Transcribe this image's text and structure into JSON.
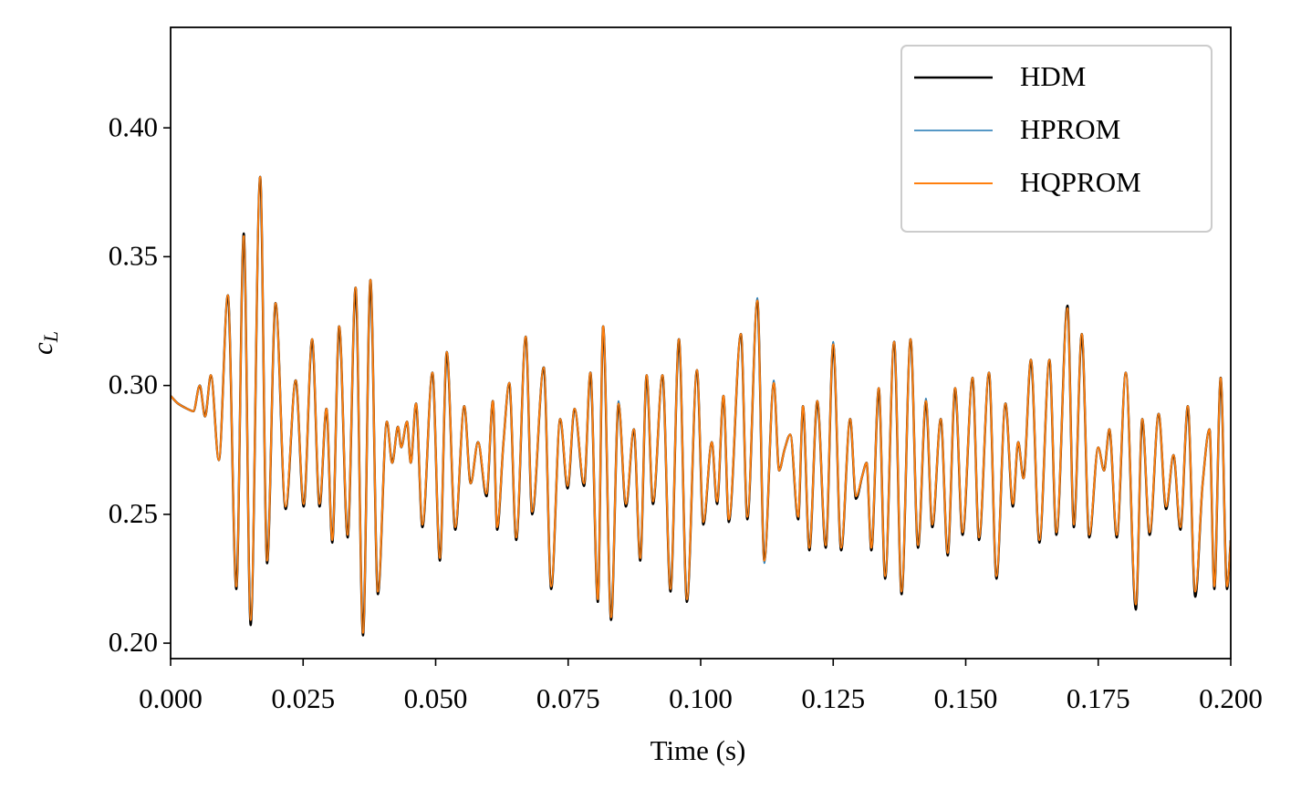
{
  "chart_data": {
    "type": "line",
    "x_label": "Time (s)",
    "y_label": "c",
    "y_label_subscript": "L",
    "x": [
      0,
      0.0014,
      0.0031,
      0.0043,
      0.0055,
      0.0065,
      0.0076,
      0.0091,
      0.0108,
      0.0124,
      0.0138,
      0.0151,
      0.0169,
      0.0182,
      0.0198,
      0.0217,
      0.0236,
      0.0251,
      0.0267,
      0.0281,
      0.0294,
      0.0305,
      0.0318,
      0.0334,
      0.0349,
      0.0363,
      0.0377,
      0.0391,
      0.0408,
      0.0418,
      0.0429,
      0.0435,
      0.0446,
      0.0453,
      0.0463,
      0.0475,
      0.0494,
      0.0508,
      0.0521,
      0.0537,
      0.0554,
      0.0566,
      0.058,
      0.0596,
      0.0608,
      0.0616,
      0.0628,
      0.0639,
      0.0652,
      0.067,
      0.0682,
      0.0704,
      0.0718,
      0.0735,
      0.0749,
      0.0762,
      0.078,
      0.0792,
      0.0806,
      0.0816,
      0.0831,
      0.0845,
      0.0859,
      0.0874,
      0.0886,
      0.0898,
      0.091,
      0.0928,
      0.0943,
      0.0959,
      0.0974,
      0.0993,
      0.1005,
      0.1021,
      0.1031,
      0.1043,
      0.1053,
      0.1076,
      0.1088,
      0.1107,
      0.112,
      0.1138,
      0.1148,
      0.1158,
      0.1169,
      0.1184,
      0.1193,
      0.1205,
      0.122,
      0.1236,
      0.125,
      0.1265,
      0.1282,
      0.1293,
      0.1305,
      0.1313,
      0.1322,
      0.1336,
      0.1348,
      0.1365,
      0.1379,
      0.1396,
      0.141,
      0.1425,
      0.1437,
      0.1453,
      0.1466,
      0.148,
      0.1494,
      0.1513,
      0.1525,
      0.1544,
      0.1558,
      0.1575,
      0.1589,
      0.1599,
      0.1609,
      0.1623,
      0.1639,
      0.1658,
      0.1671,
      0.1692,
      0.1704,
      0.1719,
      0.1733,
      0.175,
      0.1761,
      0.1771,
      0.1785,
      0.1802,
      0.1821,
      0.1833,
      0.1847,
      0.1864,
      0.1878,
      0.1892,
      0.1905,
      0.1919,
      0.1933,
      0.1947,
      0.196,
      0.1969,
      0.1981,
      0.1993,
      0.2
    ],
    "series": [
      {
        "name": "HDM",
        "color": "#000000",
        "width": 2.4,
        "values": [
          0.296,
          0.293,
          0.291,
          0.29,
          0.3,
          0.288,
          0.304,
          0.271,
          0.335,
          0.221,
          0.359,
          0.207,
          0.381,
          0.231,
          0.332,
          0.252,
          0.302,
          0.253,
          0.318,
          0.253,
          0.291,
          0.239,
          0.323,
          0.241,
          0.338,
          0.203,
          0.341,
          0.219,
          0.286,
          0.27,
          0.284,
          0.276,
          0.286,
          0.27,
          0.293,
          0.245,
          0.305,
          0.232,
          0.313,
          0.244,
          0.292,
          0.262,
          0.278,
          0.257,
          0.294,
          0.244,
          0.278,
          0.301,
          0.24,
          0.319,
          0.25,
          0.307,
          0.221,
          0.287,
          0.26,
          0.291,
          0.261,
          0.305,
          0.216,
          0.323,
          0.209,
          0.293,
          0.253,
          0.283,
          0.232,
          0.304,
          0.254,
          0.304,
          0.22,
          0.318,
          0.216,
          0.306,
          0.246,
          0.278,
          0.254,
          0.296,
          0.247,
          0.32,
          0.248,
          0.333,
          0.232,
          0.301,
          0.267,
          0.275,
          0.281,
          0.248,
          0.292,
          0.236,
          0.294,
          0.237,
          0.316,
          0.236,
          0.287,
          0.256,
          0.265,
          0.27,
          0.236,
          0.299,
          0.225,
          0.317,
          0.219,
          0.318,
          0.237,
          0.294,
          0.245,
          0.287,
          0.234,
          0.299,
          0.242,
          0.303,
          0.24,
          0.305,
          0.225,
          0.293,
          0.253,
          0.278,
          0.264,
          0.31,
          0.239,
          0.31,
          0.242,
          0.331,
          0.245,
          0.32,
          0.241,
          0.276,
          0.267,
          0.283,
          0.241,
          0.305,
          0.213,
          0.287,
          0.242,
          0.289,
          0.252,
          0.273,
          0.244,
          0.292,
          0.218,
          0.262,
          0.283,
          0.221,
          0.303,
          0.221,
          0.24
        ]
      },
      {
        "name": "HPROM",
        "color": "#1f77b4",
        "width": 1.6,
        "values": [
          0.296,
          0.293,
          0.291,
          0.29,
          0.3,
          0.288,
          0.304,
          0.271,
          0.335,
          0.223,
          0.357,
          0.21,
          0.381,
          0.232,
          0.332,
          0.253,
          0.302,
          0.254,
          0.318,
          0.254,
          0.291,
          0.24,
          0.323,
          0.242,
          0.338,
          0.205,
          0.341,
          0.22,
          0.286,
          0.27,
          0.284,
          0.276,
          0.286,
          0.27,
          0.293,
          0.246,
          0.305,
          0.233,
          0.313,
          0.245,
          0.292,
          0.262,
          0.278,
          0.258,
          0.294,
          0.245,
          0.278,
          0.301,
          0.241,
          0.319,
          0.251,
          0.307,
          0.222,
          0.287,
          0.261,
          0.291,
          0.262,
          0.305,
          0.217,
          0.323,
          0.211,
          0.294,
          0.254,
          0.283,
          0.233,
          0.304,
          0.255,
          0.304,
          0.221,
          0.318,
          0.217,
          0.306,
          0.247,
          0.278,
          0.255,
          0.296,
          0.248,
          0.32,
          0.249,
          0.334,
          0.231,
          0.302,
          0.267,
          0.275,
          0.281,
          0.249,
          0.292,
          0.237,
          0.294,
          0.238,
          0.317,
          0.237,
          0.287,
          0.257,
          0.265,
          0.27,
          0.237,
          0.299,
          0.226,
          0.317,
          0.22,
          0.318,
          0.238,
          0.295,
          0.246,
          0.287,
          0.235,
          0.299,
          0.243,
          0.303,
          0.241,
          0.305,
          0.226,
          0.293,
          0.254,
          0.278,
          0.264,
          0.31,
          0.24,
          0.31,
          0.243,
          0.33,
          0.246,
          0.32,
          0.242,
          0.276,
          0.267,
          0.283,
          0.242,
          0.305,
          0.215,
          0.287,
          0.243,
          0.289,
          0.253,
          0.273,
          0.245,
          0.292,
          0.22,
          0.262,
          0.283,
          0.222,
          0.303,
          0.222,
          0.24
        ]
      },
      {
        "name": "HQPROM",
        "color": "#ff7f0e",
        "width": 2.0,
        "values": [
          0.296,
          0.293,
          0.291,
          0.29,
          0.3,
          0.288,
          0.304,
          0.271,
          0.335,
          0.222,
          0.358,
          0.209,
          0.381,
          0.232,
          0.332,
          0.253,
          0.302,
          0.254,
          0.318,
          0.254,
          0.291,
          0.24,
          0.323,
          0.242,
          0.338,
          0.204,
          0.341,
          0.22,
          0.286,
          0.27,
          0.284,
          0.276,
          0.286,
          0.27,
          0.293,
          0.246,
          0.305,
          0.233,
          0.313,
          0.245,
          0.292,
          0.262,
          0.278,
          0.258,
          0.294,
          0.245,
          0.278,
          0.301,
          0.241,
          0.319,
          0.251,
          0.307,
          0.222,
          0.287,
          0.261,
          0.291,
          0.262,
          0.305,
          0.217,
          0.323,
          0.21,
          0.293,
          0.254,
          0.283,
          0.233,
          0.304,
          0.255,
          0.304,
          0.221,
          0.318,
          0.217,
          0.306,
          0.247,
          0.278,
          0.255,
          0.296,
          0.248,
          0.32,
          0.249,
          0.333,
          0.232,
          0.301,
          0.267,
          0.275,
          0.281,
          0.249,
          0.292,
          0.237,
          0.294,
          0.238,
          0.316,
          0.237,
          0.287,
          0.257,
          0.265,
          0.27,
          0.237,
          0.299,
          0.226,
          0.317,
          0.22,
          0.318,
          0.238,
          0.294,
          0.246,
          0.287,
          0.235,
          0.299,
          0.243,
          0.303,
          0.241,
          0.305,
          0.226,
          0.293,
          0.254,
          0.278,
          0.264,
          0.31,
          0.24,
          0.31,
          0.243,
          0.33,
          0.246,
          0.32,
          0.242,
          0.276,
          0.267,
          0.283,
          0.242,
          0.305,
          0.215,
          0.287,
          0.243,
          0.289,
          0.253,
          0.273,
          0.245,
          0.292,
          0.22,
          0.262,
          0.283,
          0.222,
          0.303,
          0.222,
          0.24
        ]
      }
    ],
    "xlim": [
      0,
      0.2
    ],
    "ylim": [
      0.194,
      0.439
    ],
    "xticks": [
      {
        "value": 0,
        "label": "0.000"
      },
      0.025,
      {
        "value": 0.05,
        "label": "0.050"
      },
      0.075,
      {
        "value": 0.1,
        "label": "0.100"
      },
      0.125,
      {
        "value": 0.15,
        "label": "0.150"
      },
      0.175,
      {
        "value": 0.2,
        "label": "0.200"
      }
    ],
    "yticks": [
      {
        "value": 0.2,
        "label": "0.20"
      },
      0.25,
      {
        "value": 0.3,
        "label": "0.30"
      },
      0.35,
      {
        "value": 0.4,
        "label": "0.40"
      }
    ],
    "legend": "upper right",
    "grid": false
  }
}
